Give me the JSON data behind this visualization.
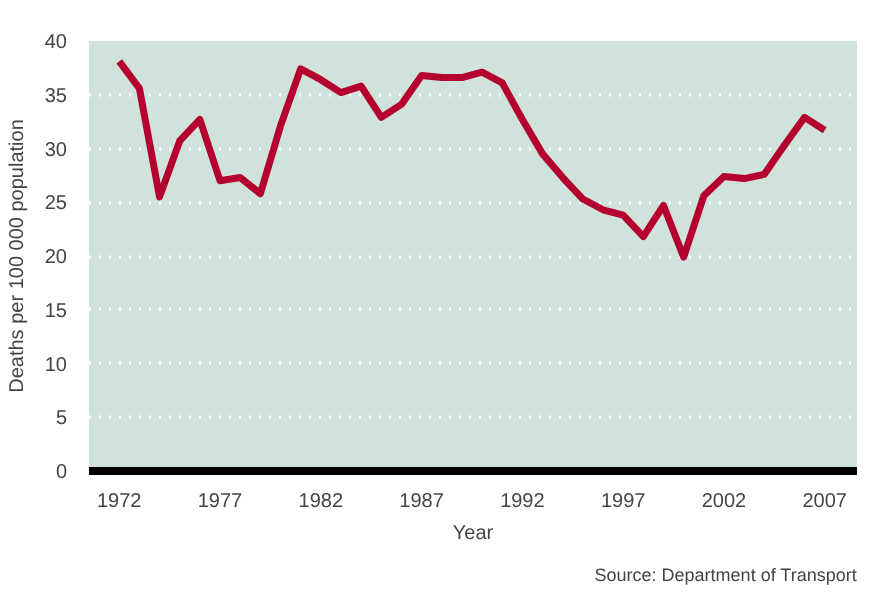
{
  "chart_data": {
    "type": "line",
    "ylabel": "Deaths per 100 000 population",
    "xlabel": "Year",
    "x": [
      1972,
      1973,
      1974,
      1975,
      1976,
      1977,
      1978,
      1979,
      1980,
      1981,
      1982,
      1983,
      1984,
      1985,
      1986,
      1987,
      1988,
      1989,
      1990,
      1991,
      1992,
      1993,
      1994,
      1995,
      1996,
      1997,
      1998,
      1999,
      2000,
      2001,
      2002,
      2003,
      2004,
      2005,
      2006,
      2007
    ],
    "series": [
      {
        "color": "#b5002f",
        "values": [
          38.1,
          35.6,
          25.5,
          30.7,
          32.7,
          27.0,
          27.3,
          25.8,
          32.1,
          37.4,
          36.4,
          35.2,
          35.8,
          32.9,
          34.1,
          36.8,
          36.6,
          36.6,
          37.1,
          36.1,
          32.7,
          29.5,
          27.3,
          25.3,
          24.3,
          23.8,
          21.8,
          24.7,
          19.9,
          25.6,
          27.4,
          27.2,
          27.6,
          30.3,
          32.9,
          31.7
        ]
      }
    ],
    "xlim": [
      1970.5,
      2008.6
    ],
    "ylim": [
      0,
      40
    ],
    "xticks": [
      1972,
      1977,
      1982,
      1987,
      1992,
      1997,
      2002,
      2007
    ],
    "yticks": [
      0,
      5,
      10,
      15,
      20,
      25,
      30,
      35,
      40
    ],
    "grid": "y",
    "line_style": "solid",
    "marker": "none",
    "annotations": [
      "Source: Department of Transport"
    ]
  }
}
